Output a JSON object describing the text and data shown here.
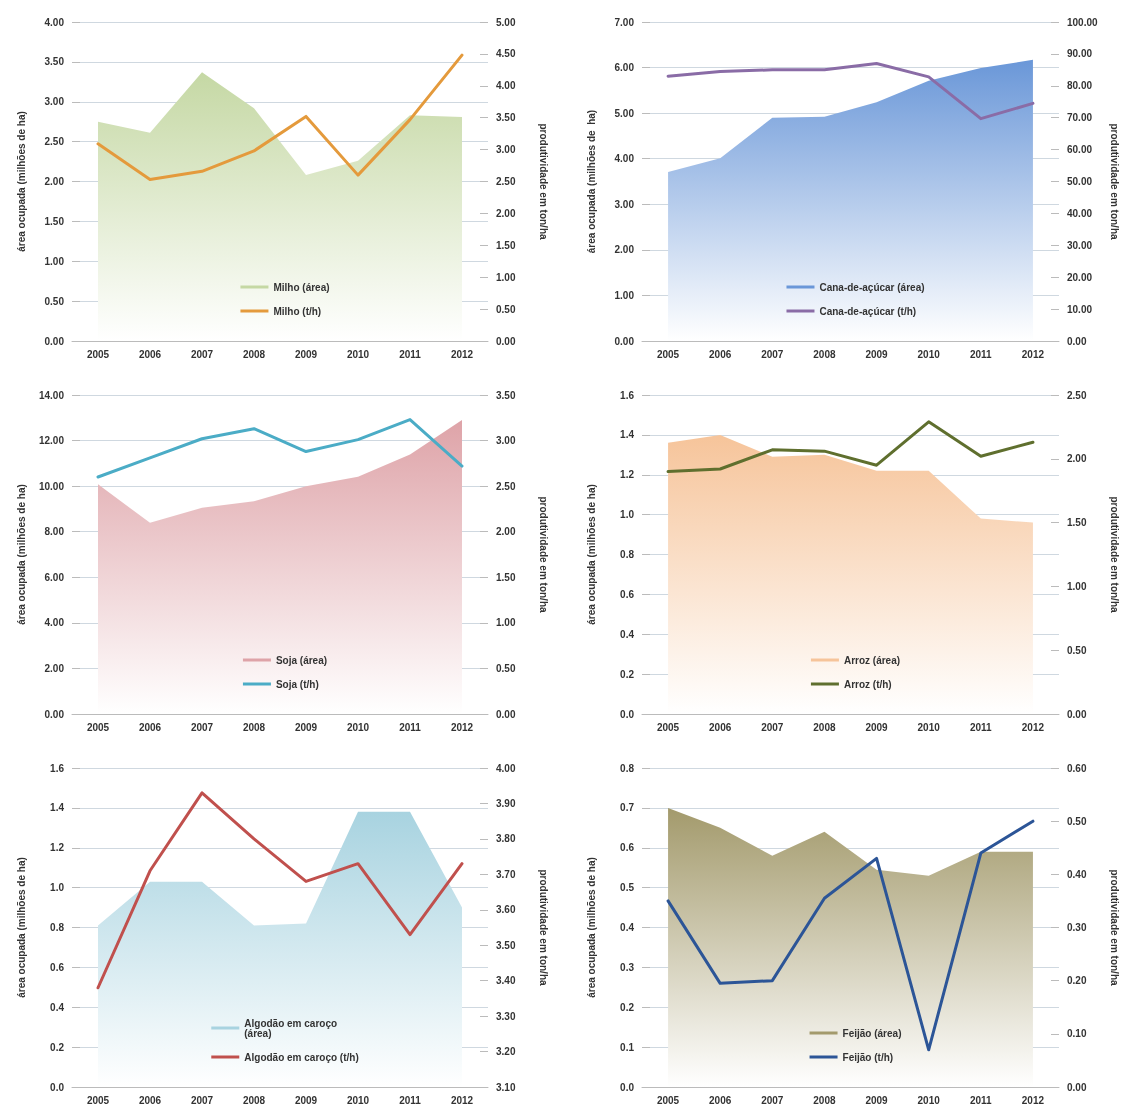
{
  "chart_data": [
    {
      "type": "line",
      "categories": [
        "2005",
        "2006",
        "2007",
        "2008",
        "2009",
        "2010",
        "2011",
        "2012"
      ],
      "ylabel": "área ocupada (milhões de ha)",
      "y2label": "produtividade em ton/ha",
      "grid": "y",
      "legend": "bottom",
      "marker": "none",
      "line_style": "solid",
      "ylim": [
        0,
        4
      ],
      "yticks": [
        {
          "value": 0,
          "label": "0.00"
        },
        {
          "value": 0.5,
          "label": "0.50"
        },
        {
          "value": 1,
          "label": "1.00"
        },
        {
          "value": 1.5,
          "label": "1.50"
        },
        {
          "value": 2,
          "label": "2.00"
        },
        {
          "value": 2.5,
          "label": "2.50"
        },
        {
          "value": 3,
          "label": "3.00"
        },
        {
          "value": 3.5,
          "label": "3.50"
        },
        {
          "value": 4,
          "label": "4.00"
        }
      ],
      "y2lim": [
        0,
        5
      ],
      "y2ticks": [
        {
          "value": 0,
          "label": "0.00"
        },
        {
          "value": 0.5,
          "label": "0.50"
        },
        {
          "value": 1,
          "label": "1.00"
        },
        {
          "value": 1.5,
          "label": "1.50"
        },
        {
          "value": 2,
          "label": "2.00"
        },
        {
          "value": 2.5,
          "label": "2.50"
        },
        {
          "value": 3,
          "label": "3.00"
        },
        {
          "value": 3.5,
          "label": "3.50"
        },
        {
          "value": 4,
          "label": "4.00"
        },
        {
          "value": 4.5,
          "label": "4.50"
        },
        {
          "value": 5,
          "label": "5.00"
        }
      ],
      "series": [
        {
          "name": "Milho (área)",
          "type": "area",
          "color": "#c5d8a4",
          "values": [
            2.75,
            2.61,
            3.37,
            2.92,
            2.08,
            2.26,
            2.83,
            2.81
          ]
        },
        {
          "name": "Milho (t/h)",
          "type": "line",
          "axis": "y2",
          "color": "#e49a3c",
          "values": [
            3.09,
            2.53,
            2.66,
            2.98,
            3.52,
            2.6,
            3.47,
            4.48
          ]
        }
      ]
    },
    {
      "type": "line",
      "categories": [
        "2005",
        "2006",
        "2007",
        "2008",
        "2009",
        "2010",
        "2011",
        "2012"
      ],
      "ylabel": "área ocupada (milhões de  ha)",
      "y2label": "produtividade em ton/ha",
      "grid": "y",
      "legend": "bottom",
      "marker": "none",
      "line_style": "solid",
      "ylim": [
        0,
        7
      ],
      "yticks": [
        {
          "value": 0,
          "label": "0.00"
        },
        {
          "value": 1,
          "label": "1.00"
        },
        {
          "value": 2,
          "label": "2.00"
        },
        {
          "value": 3,
          "label": "3.00"
        },
        {
          "value": 4,
          "label": "4.00"
        },
        {
          "value": 5,
          "label": "5.00"
        },
        {
          "value": 6,
          "label": "6.00"
        },
        {
          "value": 7,
          "label": "7.00"
        }
      ],
      "y2lim": [
        0,
        100
      ],
      "y2ticks": [
        {
          "value": 0,
          "label": "0.00"
        },
        {
          "value": 10,
          "label": "10.00"
        },
        {
          "value": 20,
          "label": "20.00"
        },
        {
          "value": 30,
          "label": "30.00"
        },
        {
          "value": 40,
          "label": "40.00"
        },
        {
          "value": 50,
          "label": "50.00"
        },
        {
          "value": 60,
          "label": "60.00"
        },
        {
          "value": 70,
          "label": "70.00"
        },
        {
          "value": 80,
          "label": "80.00"
        },
        {
          "value": 90,
          "label": "90.00"
        },
        {
          "value": 100,
          "label": "100.00"
        }
      ],
      "series": [
        {
          "name": "Cana-de-açúcar (área)",
          "type": "area",
          "color": "#6a97d8",
          "values": [
            3.71,
            4.01,
            4.9,
            4.92,
            5.24,
            5.71,
            5.99,
            6.17
          ]
        },
        {
          "name": "Cana-de-açúcar (t/h)",
          "type": "line",
          "axis": "y2",
          "color": "#8a6ca6",
          "values": [
            83,
            84.5,
            85,
            85,
            87,
            82.8,
            69.7,
            74.5
          ]
        }
      ]
    },
    {
      "type": "line",
      "categories": [
        "2005",
        "2006",
        "2007",
        "2008",
        "2009",
        "2010",
        "2011",
        "2012"
      ],
      "ylabel": "área ocupada (milhões de ha)",
      "y2label": "produtividade em ton/ha",
      "grid": "y",
      "legend": "bottom",
      "marker": "none",
      "line_style": "solid",
      "ylim": [
        0,
        14
      ],
      "yticks": [
        {
          "value": 0,
          "label": "0.00"
        },
        {
          "value": 2,
          "label": "2.00"
        },
        {
          "value": 4,
          "label": "4.00"
        },
        {
          "value": 6,
          "label": "6.00"
        },
        {
          "value": 8,
          "label": "8.00"
        },
        {
          "value": 10,
          "label": "10.00"
        },
        {
          "value": 12,
          "label": "12.00"
        },
        {
          "value": 14,
          "label": "14.00"
        }
      ],
      "y2lim": [
        0,
        3.5
      ],
      "y2ticks": [
        {
          "value": 0,
          "label": "0.00"
        },
        {
          "value": 0.5,
          "label": "0.50"
        },
        {
          "value": 1,
          "label": "1.00"
        },
        {
          "value": 1.5,
          "label": "1.50"
        },
        {
          "value": 2,
          "label": "2.00"
        },
        {
          "value": 2.5,
          "label": "2.50"
        },
        {
          "value": 3,
          "label": "3.00"
        },
        {
          "value": 3.5,
          "label": "3.50"
        }
      ],
      "series": [
        {
          "name": "Soja (área)",
          "type": "area",
          "color": "#dea3a8",
          "values": [
            10.08,
            8.39,
            9.05,
            9.34,
            10,
            10.41,
            11.39,
            12.9
          ]
        },
        {
          "name": "Soja (t/h)",
          "type": "line",
          "axis": "y2",
          "color": "#4bacc6",
          "values": [
            2.6,
            2.81,
            3.02,
            3.13,
            2.88,
            3.01,
            3.23,
            2.72
          ]
        }
      ]
    },
    {
      "type": "line",
      "categories": [
        "2005",
        "2006",
        "2007",
        "2008",
        "2009",
        "2010",
        "2011",
        "2012"
      ],
      "ylabel": "área ocupada (milhões de ha)",
      "y2label": "produtividade em ton/ha",
      "grid": "y",
      "legend": "bottom",
      "marker": "none",
      "line_style": "solid",
      "ylim": [
        0,
        1.6
      ],
      "yticks": [
        {
          "value": 0,
          "label": "0.0"
        },
        0.2,
        0.4,
        0.6,
        0.8,
        {
          "value": 1,
          "label": "1.0"
        },
        1.2,
        1.4,
        1.6
      ],
      "y2lim": [
        0,
        2.5
      ],
      "y2ticks": [
        {
          "value": 0,
          "label": "0.00"
        },
        {
          "value": 0.5,
          "label": "0.50"
        },
        {
          "value": 1,
          "label": "1.00"
        },
        {
          "value": 1.5,
          "label": "1.50"
        },
        {
          "value": 2,
          "label": "2.00"
        },
        {
          "value": 2.5,
          "label": "2.50"
        }
      ],
      "series": [
        {
          "name": "Arroz (área)",
          "type": "area",
          "color": "#f6c49a",
          "values": [
            1.36,
            1.4,
            1.29,
            1.3,
            1.22,
            1.22,
            0.98,
            0.96
          ]
        },
        {
          "name": "Arroz (t/h)",
          "type": "line",
          "axis": "y2",
          "color": "#5f6f2e",
          "values": [
            1.9,
            1.92,
            2.07,
            2.06,
            1.95,
            2.29,
            2.02,
            2.13
          ]
        }
      ]
    },
    {
      "type": "line",
      "categories": [
        "2005",
        "2006",
        "2007",
        "2008",
        "2009",
        "2010",
        "2011",
        "2012"
      ],
      "ylabel": "área ocupada (milhões de ha)",
      "y2label": "produtividade em ton/ha",
      "grid": "y",
      "legend": "bottom",
      "marker": "none",
      "line_style": "solid",
      "ylim": [
        0,
        1.6
      ],
      "yticks": [
        {
          "value": 0,
          "label": "0.0"
        },
        0.2,
        0.4,
        0.6,
        0.8,
        {
          "value": 1,
          "label": "1.0"
        },
        1.2,
        1.4,
        1.6
      ],
      "y2lim": [
        3.1,
        4
      ],
      "y2ticks": [
        {
          "value": 3.1,
          "label": "3.10"
        },
        {
          "value": 3.2,
          "label": "3.20"
        },
        {
          "value": 3.3,
          "label": "3.30"
        },
        {
          "value": 3.4,
          "label": "3.40"
        },
        {
          "value": 3.5,
          "label": "3.50"
        },
        {
          "value": 3.6,
          "label": "3.60"
        },
        {
          "value": 3.7,
          "label": "3.70"
        },
        {
          "value": 3.8,
          "label": "3.80"
        },
        {
          "value": 3.9,
          "label": "3.90"
        },
        {
          "value": 4,
          "label": "4.00"
        }
      ],
      "series": [
        {
          "name": "Algodão em caroço (área)",
          "type": "area",
          "color": "#a8d3e0",
          "values": [
            0.81,
            1.03,
            1.03,
            0.81,
            0.82,
            1.38,
            1.38,
            0.9
          ]
        },
        {
          "name": "Algodão em caroço (t/h)",
          "type": "line",
          "axis": "y2",
          "color": "#c0504d",
          "values": [
            3.38,
            3.71,
            3.93,
            3.8,
            3.68,
            3.73,
            3.53,
            3.73
          ]
        }
      ]
    },
    {
      "type": "line",
      "categories": [
        "2005",
        "2006",
        "2007",
        "2008",
        "2009",
        "2010",
        "2011",
        "2012"
      ],
      "ylabel": "área ocupada (milhões de ha)",
      "y2label": "produtividade em ton/ha",
      "grid": "y",
      "legend": "bottom",
      "marker": "none",
      "line_style": "solid",
      "ylim": [
        0,
        0.8
      ],
      "yticks": [
        {
          "value": 0,
          "label": "0.0"
        },
        0.1,
        0.2,
        0.3,
        0.4,
        0.5,
        0.6,
        0.7,
        0.8
      ],
      "y2lim": [
        0,
        0.6
      ],
      "y2ticks": [
        {
          "value": 0,
          "label": "0.00"
        },
        {
          "value": 0.1,
          "label": "0.10"
        },
        {
          "value": 0.2,
          "label": "0.20"
        },
        {
          "value": 0.3,
          "label": "0.30"
        },
        {
          "value": 0.4,
          "label": "0.40"
        },
        {
          "value": 0.5,
          "label": "0.50"
        },
        {
          "value": 0.6,
          "label": "0.60"
        }
      ],
      "series": [
        {
          "name": "Feijão (área)",
          "type": "area",
          "color": "#a39a6c",
          "values": [
            0.7,
            0.65,
            0.58,
            0.64,
            0.545,
            0.53,
            0.59,
            0.59
          ]
        },
        {
          "name": "Feijão (t/h)",
          "type": "line",
          "axis": "y2",
          "color": "#2c5597",
          "values": [
            0.35,
            0.195,
            0.2,
            0.355,
            0.43,
            0.07,
            0.44,
            0.5
          ]
        }
      ]
    }
  ]
}
